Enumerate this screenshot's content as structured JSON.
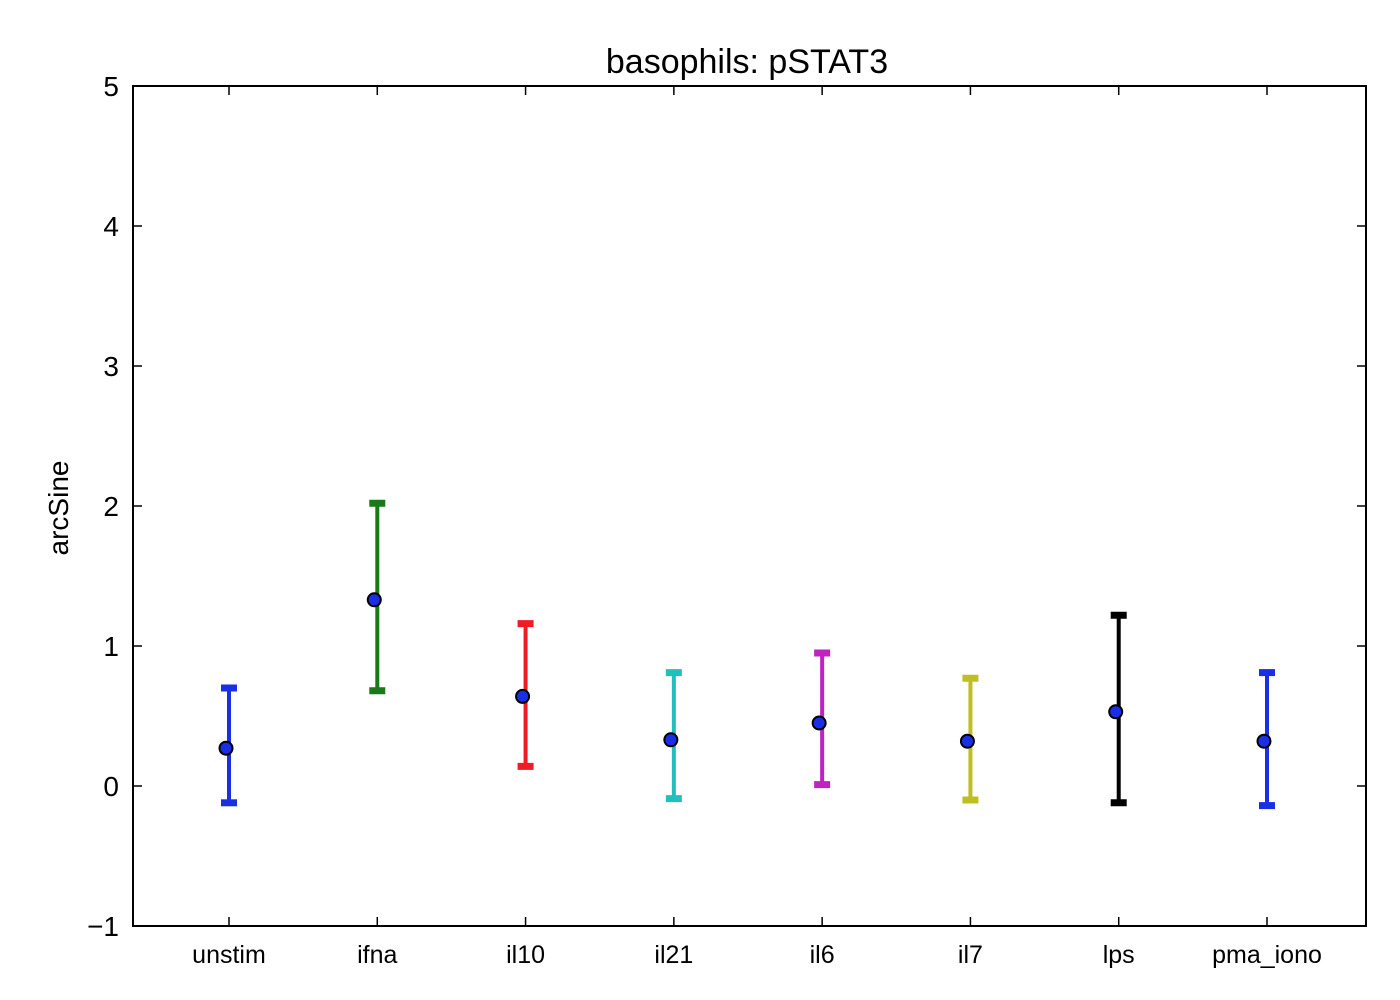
{
  "chart_data": {
    "type": "scatter",
    "title": "basophils: pSTAT3",
    "xlabel": "",
    "ylabel": "arcSine",
    "ylim": [
      -1,
      5
    ],
    "yticks": [
      -1,
      0,
      1,
      2,
      3,
      4,
      5
    ],
    "ytick_labels": [
      "−1",
      "0",
      "1",
      "2",
      "3",
      "4",
      "5"
    ],
    "grid": false,
    "marker_color": "#1a2ee6",
    "categories": [
      "unstim",
      "ifna",
      "il10",
      "il21",
      "il6",
      "il7",
      "lps",
      "pma_iono"
    ],
    "points": [
      {
        "category": "unstim",
        "value": 0.27,
        "lower": -0.12,
        "upper": 0.7,
        "color": "#1a2ee6"
      },
      {
        "category": "ifna",
        "value": 1.33,
        "lower": 0.68,
        "upper": 2.02,
        "color": "#1a7a1a"
      },
      {
        "category": "il10",
        "value": 0.64,
        "lower": 0.14,
        "upper": 1.16,
        "color": "#ee1c25"
      },
      {
        "category": "il21",
        "value": 0.33,
        "lower": -0.09,
        "upper": 0.81,
        "color": "#22bfbf"
      },
      {
        "category": "il6",
        "value": 0.45,
        "lower": 0.01,
        "upper": 0.95,
        "color": "#bf22bf"
      },
      {
        "category": "il7",
        "value": 0.32,
        "lower": -0.1,
        "upper": 0.77,
        "color": "#bfbf22"
      },
      {
        "category": "lps",
        "value": 0.53,
        "lower": -0.12,
        "upper": 1.22,
        "color": "#000000"
      },
      {
        "category": "pma_iono",
        "value": 0.32,
        "lower": -0.14,
        "upper": 0.81,
        "color": "#1a2ee6"
      }
    ]
  }
}
